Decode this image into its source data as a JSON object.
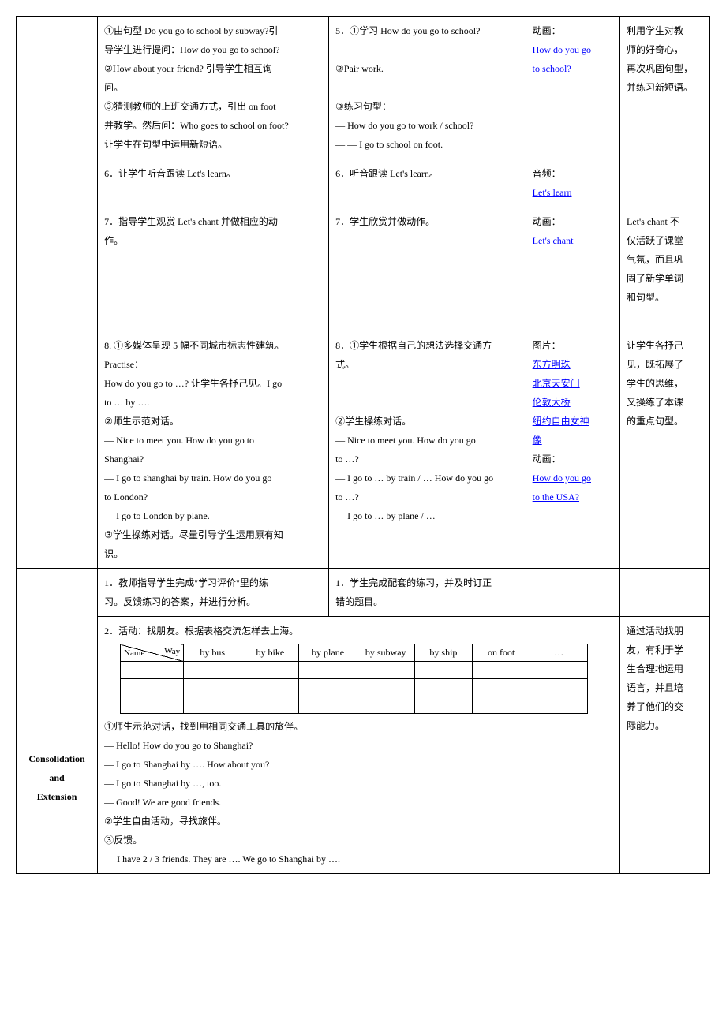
{
  "row1": {
    "teacher": {
      "l1": "①由句型 Do you go to school by subway?引",
      "l2": "导学生进行提问：How do you go to school?",
      "l3": "②How about your friend?  引导学生相互询",
      "l4": "问。",
      "l5": "③猜测教师的上班交通方式，引出 on foot",
      "l6": "并教学。然后问：Who goes to school on foot?",
      "l7": "让学生在句型中运用新短语。"
    },
    "student": {
      "l1": "5．①学习 How do you go to school?",
      "l2": "②Pair work.",
      "l3": "③练习句型：",
      "l4": "— How do you go to work / school?",
      "l5": "—  —    I go to school on foot."
    },
    "media": {
      "label": "动画：",
      "link1": "How do you go",
      "link2": "to school?"
    },
    "intent": {
      "l1": "利用学生对教",
      "l2": "师的好奇心，",
      "l3": "再次巩固句型，",
      "l4": "并练习新短语。"
    }
  },
  "row2": {
    "teacher": "6．让学生听音跟读 Let's learn。",
    "student": "6．听音跟读 Let's learn。",
    "media": {
      "label": "音频：",
      "link": "Let's learn"
    }
  },
  "row3": {
    "teacher": {
      "l1": "7．指导学生观赏 Let's chant 并做相应的动",
      "l2": "作。"
    },
    "student": "7．学生欣赏并做动作。",
    "media": {
      "label": "动画：",
      "link": "Let's chant"
    },
    "intent": {
      "l1": "Let's chant 不",
      "l2": "仅活跃了课堂",
      "l3": "气氛，而且巩",
      "l4": "固了新学单词",
      "l5": "和句型。"
    }
  },
  "row4": {
    "teacher": {
      "l1": "8. ①多媒体呈现 5 幅不同城市标志性建筑。",
      "l2": "Practise：",
      "l3": "How do you go to …?  让学生各抒己见。I go",
      "l4": "to … by ….",
      "l5": "②师生示范对话。",
      "l6": "— Nice to meet you. How do you go to",
      "l7": "Shanghai?",
      "l8": "— I go to shanghai by train. How do you go",
      "l9": "to London?",
      "l10": "— I go to London by plane.",
      "l11": "③学生操练对话。尽量引导学生运用原有知",
      "l12": "识。"
    },
    "student": {
      "l1": "8．①学生根据自己的想法选择交通方",
      "l2": "式。",
      "l3": "②学生操练对话。",
      "l4": "— Nice to meet you. How do you go",
      "l5": "to …?",
      "l6": "— I go to … by train / … How do you go",
      "l7": "to …?",
      "l8": "— I go to … by plane / …"
    },
    "media": {
      "label1": "图片：",
      "link1": "东方明珠",
      "link2": "北京天安门",
      "link3": "伦敦大桥",
      "link4a": "纽约自由女神",
      "link4b": "像",
      "label2": "动画：",
      "link5a": "How do you go",
      "link5b": "to the USA?"
    },
    "intent": {
      "l1": "让学生各抒己",
      "l2": "见，既拓展了",
      "l3": "学生的思维，",
      "l4": "又操练了本课",
      "l5": "的重点句型。"
    }
  },
  "consolidation": {
    "label1": "Consolidation",
    "label2": "and",
    "label3": "Extension",
    "r1teacher": {
      "l1": "1．教师指导学生完成\"学习评价\"里的练",
      "l2": "习。反馈练习的答案，并进行分析。"
    },
    "r1student": {
      "l1": "1．学生完成配套的练习，并及时订正",
      "l2": "错的题目。"
    },
    "activity": {
      "intro": "2．活动：找朋友。根据表格交流怎样去上海。",
      "table": {
        "way": "Way",
        "name": "Name",
        "h1": "by bus",
        "h2": "by bike",
        "h3": "by plane",
        "h4": "by subway",
        "h5": "by ship",
        "h6": "on foot",
        "h7": "…"
      },
      "l1": "①师生示范对话，找到用相同交通工具的旅伴。",
      "l2": "— Hello! How do you go to Shanghai?",
      "l3": "— I go to Shanghai by …. How about you?",
      "l4": "— I go to Shanghai by …, too.",
      "l5": "— Good! We are good friends.",
      "l6": "②学生自由活动，寻找旅伴。",
      "l7": "③反馈。",
      "l8": "I have 2 / 3 friends. They are …. We go to Shanghai by …."
    },
    "intent": {
      "l1": "通过活动找朋",
      "l2": "友，有利于学",
      "l3": "生合理地运用",
      "l4": "语言，并且培",
      "l5": "养了他们的交",
      "l6": "际能力。"
    }
  }
}
